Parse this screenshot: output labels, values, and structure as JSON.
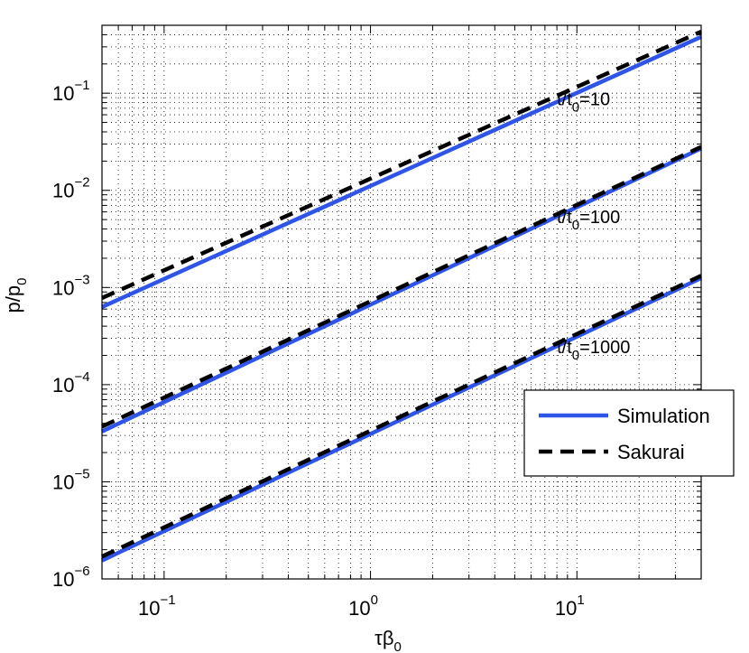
{
  "chart_data": {
    "type": "line",
    "title": "",
    "xlabel": "τβ",
    "xlabel_sub": "0",
    "ylabel": "p/p",
    "ylabel_sub": "0",
    "xscale": "log",
    "yscale": "log",
    "xlim": [
      0.05,
      40
    ],
    "ylim": [
      1e-06,
      0.5
    ],
    "grid": "minor dotted",
    "x_ticks": [
      {
        "base": "10",
        "exp": "−1",
        "value": 0.1
      },
      {
        "base": "10",
        "exp": "0",
        "value": 1
      },
      {
        "base": "10",
        "exp": "1",
        "value": 10
      }
    ],
    "y_ticks": [
      {
        "base": "10",
        "exp": "−6",
        "value": 1e-06
      },
      {
        "base": "10",
        "exp": "−5",
        "value": 1e-05
      },
      {
        "base": "10",
        "exp": "−4",
        "value": 0.0001
      },
      {
        "base": "10",
        "exp": "−3",
        "value": 0.001
      },
      {
        "base": "10",
        "exp": "−2",
        "value": 0.01
      },
      {
        "base": "10",
        "exp": "−1",
        "value": 0.1
      }
    ],
    "legend": {
      "placement": "lower-right",
      "entries": [
        {
          "name": "Simulation",
          "style": "solid",
          "color": "#2f55e8"
        },
        {
          "name": "Sakurai",
          "style": "dashed",
          "color": "#000000"
        }
      ]
    },
    "series": [
      {
        "name": "Simulation",
        "group": "t/t0=10",
        "style": "solid",
        "color": "#2f55e8",
        "x": [
          0.05,
          40
        ],
        "y": [
          0.00063,
          0.38
        ]
      },
      {
        "name": "Sakurai",
        "group": "t/t0=10",
        "style": "dashed",
        "color": "#000000",
        "x": [
          0.05,
          40
        ],
        "y": [
          0.00078,
          0.43
        ]
      },
      {
        "name": "Simulation",
        "group": "t/t0=100",
        "style": "solid",
        "color": "#2f55e8",
        "x": [
          0.05,
          40
        ],
        "y": [
          3.3e-05,
          0.027
        ]
      },
      {
        "name": "Sakurai",
        "group": "t/t0=100",
        "style": "dashed",
        "color": "#000000",
        "x": [
          0.05,
          40
        ],
        "y": [
          3.7e-05,
          0.028
        ]
      },
      {
        "name": "Simulation",
        "group": "t/t0=1000",
        "style": "solid",
        "color": "#2f55e8",
        "x": [
          0.05,
          40
        ],
        "y": [
          1.55e-06,
          0.00125
        ]
      },
      {
        "name": "Sakurai",
        "group": "t/t0=1000",
        "style": "dashed",
        "color": "#000000",
        "x": [
          0.05,
          40
        ],
        "y": [
          1.7e-06,
          0.00132
        ]
      }
    ],
    "annotations": [
      {
        "pre": "t/t",
        "sub": "0",
        "post": "=10",
        "x": 8,
        "y": 0.075
      },
      {
        "pre": "t/t",
        "sub": "0",
        "post": "=100",
        "x": 8,
        "y": 0.0046
      },
      {
        "pre": "t/t",
        "sub": "0",
        "post": "=1000",
        "x": 8,
        "y": 0.00021
      }
    ]
  }
}
